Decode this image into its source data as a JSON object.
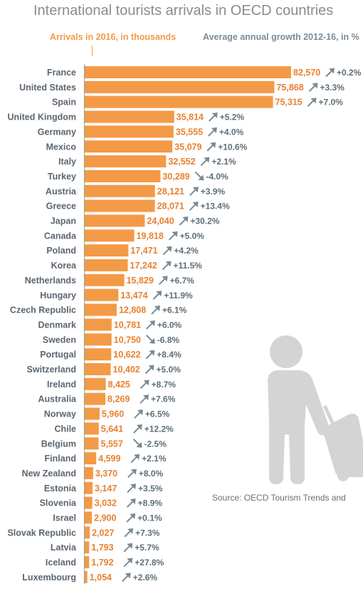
{
  "title": "International tourists arrivals in OECD countries",
  "headers": {
    "arrivals": "Arrivals in 2016, in thousands",
    "growth": "Average annual growth 2012-16, in %"
  },
  "source": "Source: OECD Tourism Trends and",
  "colors": {
    "bar": "#f39a47",
    "value_label": "#e8802f",
    "growth_text": "#5f6e77",
    "growth_arrow": "#7a8a94",
    "country_label": "#5b6670",
    "silhouette": "#d4d4d4"
  },
  "chart_data": {
    "type": "bar",
    "orientation": "horizontal",
    "title": "International tourists arrivals in OECD countries",
    "xlabel": "Arrivals in 2016, in thousands",
    "categories": [
      "France",
      "United States",
      "Spain",
      "United Kingdom",
      "Germany",
      "Mexico",
      "Italy",
      "Turkey",
      "Austria",
      "Greece",
      "Japan",
      "Canada",
      "Poland",
      "Korea",
      "Netherlands",
      "Hungary",
      "Czech Republic",
      "Denmark",
      "Sweden",
      "Portugal",
      "Switzerland",
      "Ireland",
      "Australia",
      "Norway",
      "Chile",
      "Belgium",
      "Finland",
      "New Zealand",
      "Estonia",
      "Slovenia",
      "Israel",
      "Slovak Republic",
      "Latvia",
      "Iceland",
      "Luxembourg"
    ],
    "series": [
      {
        "name": "Arrivals in 2016, in thousands",
        "values": [
          82570,
          75868,
          75315,
          35814,
          35555,
          35079,
          32552,
          30289,
          28121,
          28071,
          24040,
          19818,
          17471,
          17242,
          15829,
          13474,
          12808,
          10781,
          10750,
          10622,
          10402,
          8425,
          8269,
          5960,
          5641,
          5557,
          4599,
          3370,
          3147,
          3032,
          2900,
          2027,
          1793,
          1792,
          1054
        ],
        "labels": [
          "82,570",
          "75,868",
          "75,315",
          "35,814",
          "35,555",
          "35,079",
          "32,552",
          "30,289",
          "28,121",
          "28,071",
          "24,040",
          "19,818",
          "17,471",
          "17,242",
          "15,829",
          "13,474",
          "12,808",
          "10,781",
          "10,750",
          "10,622",
          "10,402",
          "8,425",
          "8,269",
          "5,960",
          "5,641",
          "5,557",
          "4,599",
          "3,370",
          "3,147",
          "3,032",
          "2,900",
          "2,027",
          "1,793",
          "1,792",
          "1,054"
        ]
      },
      {
        "name": "Average annual growth 2012-16, in %",
        "values": [
          0.2,
          3.3,
          7.0,
          5.2,
          4.0,
          10.6,
          2.1,
          -4.0,
          3.9,
          13.4,
          30.2,
          5.0,
          4.2,
          11.5,
          6.7,
          11.9,
          6.1,
          6.0,
          -6.8,
          8.4,
          5.0,
          8.7,
          7.6,
          6.5,
          12.2,
          -2.5,
          2.1,
          8.0,
          3.5,
          8.9,
          0.1,
          7.3,
          5.7,
          27.8,
          2.6
        ],
        "labels": [
          "+0.2%",
          "+3.3%",
          "+7.0%",
          "+5.2%",
          "+4.0%",
          "+10.6%",
          "+2.1%",
          "-4.0%",
          "+3.9%",
          "+13.4%",
          "+30.2%",
          "+5.0%",
          "+4.2%",
          "+11.5%",
          "+6.7%",
          "+11.9%",
          "+6.1%",
          "+6.0%",
          "-6.8%",
          "+8.4%",
          "+5.0%",
          "+8.7%",
          "+7.6%",
          "+6.5%",
          "+12.2%",
          "-2.5%",
          "+2.1%",
          "+8.0%",
          "+3.5%",
          "+8.9%",
          "+0.1%",
          "+7.3%",
          "+5.7%",
          "+27.8%",
          "+2.6%"
        ]
      }
    ],
    "xlim": [
      0,
      82570
    ],
    "grid": false,
    "legend": "none"
  }
}
